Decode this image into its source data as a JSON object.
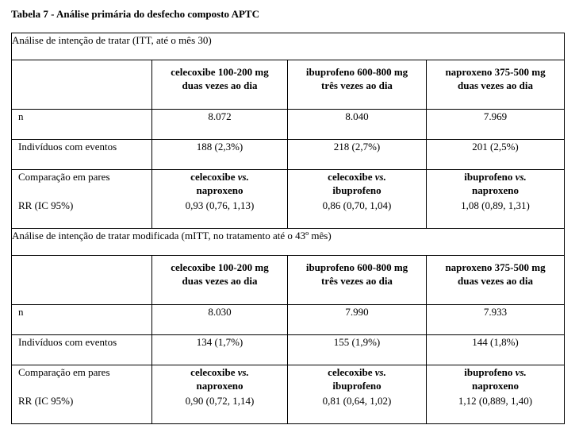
{
  "caption": "Tabela 7 - Análise primária do desfecho composto APTC",
  "sections": [
    {
      "title": "Análise de intenção de tratar (ITT, até o mês 30)",
      "headers": [
        [
          "celecoxibe 100-200 mg",
          "duas vezes ao dia"
        ],
        [
          "ibuprofeno 600-800 mg",
          "três vezes ao dia"
        ],
        [
          "naproxeno 375-500 mg",
          "duas vezes ao dia"
        ]
      ],
      "n_label": "n",
      "n_values": [
        "8.072",
        "8.040",
        "7.969"
      ],
      "events_label": "Indivíduos com eventos",
      "events_values": [
        "188 (2,3%)",
        "218 (2,7%)",
        "201 (2,5%)"
      ],
      "comparison_label": "Comparação em pares",
      "comparisons": [
        {
          "a": "celecoxibe",
          "vs": "vs.",
          "b": "naproxeno"
        },
        {
          "a": "celecoxibe",
          "vs": "vs.",
          "b": "ibuprofeno"
        },
        {
          "a": "ibuprofeno",
          "vs": "vs.",
          "b": "naproxeno"
        }
      ],
      "rr_label": "RR (IC 95%)",
      "rr_values": [
        "0,93 (0,76, 1,13)",
        "0,86 (0,70, 1,04)",
        "1,08 (0,89, 1,31)"
      ]
    },
    {
      "title": "Análise de intenção de tratar modificada (mITT, no tratamento até o 43º mês)",
      "headers": [
        [
          "celecoxibe 100-200 mg",
          "duas vezes ao dia"
        ],
        [
          "ibuprofeno 600-800 mg",
          "três vezes ao dia"
        ],
        [
          "naproxeno 375-500 mg",
          "duas vezes ao dia"
        ]
      ],
      "n_label": "n",
      "n_values": [
        "8.030",
        "7.990",
        "7.933"
      ],
      "events_label": "Indivíduos com eventos",
      "events_values": [
        "134 (1,7%)",
        "155 (1,9%)",
        "144 (1,8%)"
      ],
      "comparison_label": "Comparação em pares",
      "comparisons": [
        {
          "a": "celecoxibe",
          "vs": "vs.",
          "b": "naproxeno"
        },
        {
          "a": "celecoxibe",
          "vs": "vs.",
          "b": "ibuprofeno"
        },
        {
          "a": "ibuprofeno",
          "vs": "vs.",
          "b": "naproxeno"
        }
      ],
      "rr_label": "RR (IC 95%)",
      "rr_values": [
        "0,90 (0,72, 1,14)",
        "0,81 (0,64, 1,02)",
        "1,12 (0,889, 1,40)"
      ]
    }
  ]
}
